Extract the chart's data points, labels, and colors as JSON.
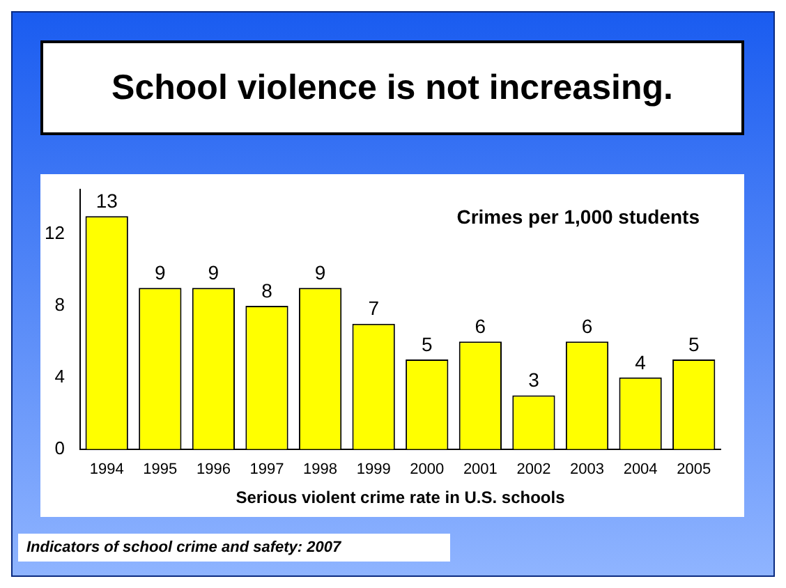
{
  "chart_data": {
    "type": "bar",
    "title": "School violence is not increasing.",
    "xlabel": "Serious violent crime rate in U.S. schools",
    "categories": [
      "1994",
      "1995",
      "1996",
      "1997",
      "1998",
      "1999",
      "2000",
      "2001",
      "2002",
      "2003",
      "2004",
      "2005"
    ],
    "values": [
      13,
      9,
      9,
      8,
      9,
      7,
      5,
      6,
      3,
      6,
      4,
      5
    ],
    "color": "#ffff00",
    "ylim": [
      0,
      14.5
    ],
    "yticks": [
      0,
      4,
      8,
      12
    ],
    "grid": false,
    "legend": false,
    "data_labels": true,
    "annotations": [
      "Crimes per 1,000 students",
      "Indicators of school crime and safety: 2007"
    ]
  }
}
